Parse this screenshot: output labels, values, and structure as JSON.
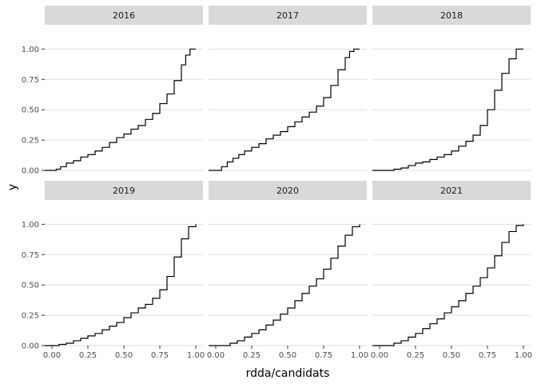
{
  "chart_data": {
    "type": "line",
    "subtype": "faceted-ecdf-step",
    "xlabel": "rdda/candidats",
    "ylabel": "y",
    "xlim": [
      -0.05,
      1.05
    ],
    "ylim": [
      0,
      1.2
    ],
    "x_ticks": [
      0.0,
      0.25,
      0.5,
      0.75,
      1.0
    ],
    "x_tick_labels": [
      "0.00",
      "0.25",
      "0.50",
      "0.75",
      "1.00"
    ],
    "y_ticks": [
      0.0,
      0.25,
      0.5,
      0.75,
      1.0
    ],
    "y_tick_labels": [
      "0.00",
      "0.25",
      "0.50",
      "0.75",
      "1.00"
    ],
    "grid": true,
    "legend": "none",
    "facet_layout": "2 rows x 3 columns",
    "line_color": "#000000",
    "strip_color": "#d9d9d9",
    "grid_color": "#dedede",
    "facets": [
      {
        "label": "2016",
        "x": [
          -0.05,
          0.0,
          0.03,
          0.06,
          0.1,
          0.15,
          0.2,
          0.25,
          0.3,
          0.35,
          0.4,
          0.45,
          0.5,
          0.55,
          0.6,
          0.65,
          0.7,
          0.75,
          0.8,
          0.85,
          0.9,
          0.93,
          0.96,
          1.0
        ],
        "y": [
          0.0,
          0.0,
          0.01,
          0.03,
          0.06,
          0.08,
          0.11,
          0.13,
          0.16,
          0.19,
          0.23,
          0.27,
          0.3,
          0.34,
          0.37,
          0.42,
          0.47,
          0.55,
          0.63,
          0.74,
          0.87,
          0.95,
          1.0,
          1.0
        ]
      },
      {
        "label": "2017",
        "x": [
          -0.05,
          0.0,
          0.04,
          0.08,
          0.12,
          0.16,
          0.2,
          0.25,
          0.3,
          0.35,
          0.4,
          0.45,
          0.5,
          0.55,
          0.6,
          0.65,
          0.7,
          0.75,
          0.8,
          0.85,
          0.9,
          0.93,
          0.96,
          1.0
        ],
        "y": [
          0.0,
          0.0,
          0.03,
          0.07,
          0.1,
          0.13,
          0.16,
          0.19,
          0.22,
          0.26,
          0.29,
          0.32,
          0.36,
          0.4,
          0.44,
          0.48,
          0.53,
          0.6,
          0.7,
          0.83,
          0.93,
          0.98,
          1.0,
          1.0
        ]
      },
      {
        "label": "2018",
        "x": [
          -0.05,
          0.0,
          0.05,
          0.1,
          0.15,
          0.2,
          0.25,
          0.3,
          0.35,
          0.4,
          0.45,
          0.5,
          0.55,
          0.6,
          0.65,
          0.7,
          0.75,
          0.8,
          0.85,
          0.9,
          0.95,
          0.97,
          1.0
        ],
        "y": [
          0.0,
          0.0,
          0.0,
          0.01,
          0.02,
          0.04,
          0.06,
          0.07,
          0.09,
          0.11,
          0.13,
          0.16,
          0.2,
          0.24,
          0.29,
          0.37,
          0.5,
          0.66,
          0.8,
          0.92,
          1.0,
          1.0,
          1.0
        ]
      },
      {
        "label": "2019",
        "x": [
          -0.05,
          0.0,
          0.05,
          0.1,
          0.15,
          0.2,
          0.25,
          0.3,
          0.35,
          0.4,
          0.45,
          0.5,
          0.55,
          0.6,
          0.65,
          0.7,
          0.75,
          0.8,
          0.85,
          0.9,
          0.95,
          1.0
        ],
        "y": [
          0.0,
          0.0,
          0.01,
          0.02,
          0.04,
          0.06,
          0.08,
          0.1,
          0.13,
          0.16,
          0.19,
          0.23,
          0.27,
          0.31,
          0.34,
          0.39,
          0.46,
          0.57,
          0.73,
          0.88,
          0.98,
          1.0
        ]
      },
      {
        "label": "2020",
        "x": [
          -0.05,
          0.0,
          0.05,
          0.1,
          0.15,
          0.2,
          0.25,
          0.3,
          0.35,
          0.4,
          0.45,
          0.5,
          0.55,
          0.6,
          0.65,
          0.7,
          0.75,
          0.8,
          0.85,
          0.9,
          0.95,
          1.0
        ],
        "y": [
          0.0,
          0.0,
          0.0,
          0.02,
          0.04,
          0.07,
          0.1,
          0.13,
          0.17,
          0.21,
          0.26,
          0.31,
          0.37,
          0.43,
          0.49,
          0.55,
          0.63,
          0.72,
          0.82,
          0.91,
          0.98,
          1.0
        ]
      },
      {
        "label": "2021",
        "x": [
          -0.05,
          0.0,
          0.05,
          0.1,
          0.15,
          0.2,
          0.25,
          0.3,
          0.35,
          0.4,
          0.45,
          0.5,
          0.55,
          0.6,
          0.65,
          0.7,
          0.75,
          0.8,
          0.85,
          0.9,
          0.95,
          1.0
        ],
        "y": [
          0.0,
          0.0,
          0.0,
          0.02,
          0.04,
          0.07,
          0.1,
          0.14,
          0.18,
          0.22,
          0.27,
          0.32,
          0.37,
          0.43,
          0.49,
          0.56,
          0.64,
          0.74,
          0.85,
          0.94,
          0.99,
          1.0
        ]
      }
    ]
  }
}
